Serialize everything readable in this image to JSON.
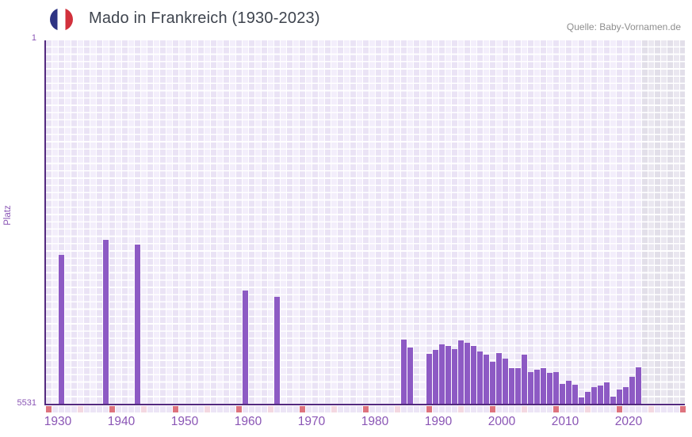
{
  "header": {
    "title": "Mado in Frankreich (1930-2023)",
    "source": "Quelle: Baby-Vornamen.de",
    "flag_icon": "france-flag-circle"
  },
  "chart_data": {
    "type": "bar",
    "title": "Mado in Frankreich (1930-2023)",
    "ylabel": "Platz",
    "xlabel": "",
    "y_axis": {
      "top_label": "1",
      "bottom_label": "5531",
      "min": 1,
      "max": 5531,
      "inverted": true
    },
    "x_axis": {
      "start": 1930,
      "end": 2023,
      "tick_interval": 10,
      "tick_labels": [
        "1930",
        "1940",
        "1950",
        "1960",
        "1970",
        "1980",
        "1990",
        "2000",
        "2010",
        "2020"
      ]
    },
    "grid": true,
    "legend": "none",
    "series": [
      {
        "name": "Platz",
        "points": [
          {
            "year": 1932,
            "rank": 3255
          },
          {
            "year": 1939,
            "rank": 3035
          },
          {
            "year": 1944,
            "rank": 3105
          },
          {
            "year": 1961,
            "rank": 3795
          },
          {
            "year": 1966,
            "rank": 3895
          },
          {
            "year": 1986,
            "rank": 4540
          },
          {
            "year": 1987,
            "rank": 4665
          },
          {
            "year": 1990,
            "rank": 4755
          },
          {
            "year": 1991,
            "rank": 4695
          },
          {
            "year": 1992,
            "rank": 4615
          },
          {
            "year": 1993,
            "rank": 4640
          },
          {
            "year": 1994,
            "rank": 4690
          },
          {
            "year": 1995,
            "rank": 4555
          },
          {
            "year": 1996,
            "rank": 4590
          },
          {
            "year": 1997,
            "rank": 4640
          },
          {
            "year": 1998,
            "rank": 4725
          },
          {
            "year": 1999,
            "rank": 4775
          },
          {
            "year": 2000,
            "rank": 4885
          },
          {
            "year": 2001,
            "rank": 4750
          },
          {
            "year": 2002,
            "rank": 4835
          },
          {
            "year": 2003,
            "rank": 4980
          },
          {
            "year": 2004,
            "rank": 4980
          },
          {
            "year": 2005,
            "rank": 4775
          },
          {
            "year": 2006,
            "rank": 5035
          },
          {
            "year": 2007,
            "rank": 5000
          },
          {
            "year": 2008,
            "rank": 4975
          },
          {
            "year": 2009,
            "rank": 5055
          },
          {
            "year": 2010,
            "rank": 5040
          },
          {
            "year": 2011,
            "rank": 5220
          },
          {
            "year": 2012,
            "rank": 5170
          },
          {
            "year": 2013,
            "rank": 5230
          },
          {
            "year": 2014,
            "rank": 5425
          },
          {
            "year": 2015,
            "rank": 5340
          },
          {
            "year": 2016,
            "rank": 5265
          },
          {
            "year": 2017,
            "rank": 5245
          },
          {
            "year": 2018,
            "rank": 5195
          },
          {
            "year": 2019,
            "rank": 5410
          },
          {
            "year": 2020,
            "rank": 5305
          },
          {
            "year": 2021,
            "rank": 5265
          },
          {
            "year": 2022,
            "rank": 5115
          },
          {
            "year": 2023,
            "rank": 4965
          }
        ]
      }
    ],
    "trailing_no_data_band": {
      "from_year": 2024,
      "to_year": 2029
    },
    "year_marker_strip": {
      "decade_remainder": 0,
      "half_decade_remainder": 5,
      "last_marker_year": 2030
    },
    "colors": {
      "bar": "#8d5ac4",
      "axis": "#53297f",
      "tick_label": "#8a55b5",
      "grid_light": "#f3eefb",
      "grid_dark": "#eae3f5",
      "no_data_grid": "#e2dfe9",
      "marker_default": "#ece5f6",
      "marker_half_decade": "#f4d8e1",
      "marker_decade": "#de737e",
      "title_text": "#3e444e",
      "source_text": "#8e8e8e",
      "flag_blue": "#2d3383",
      "flag_red": "#d2313c"
    }
  }
}
